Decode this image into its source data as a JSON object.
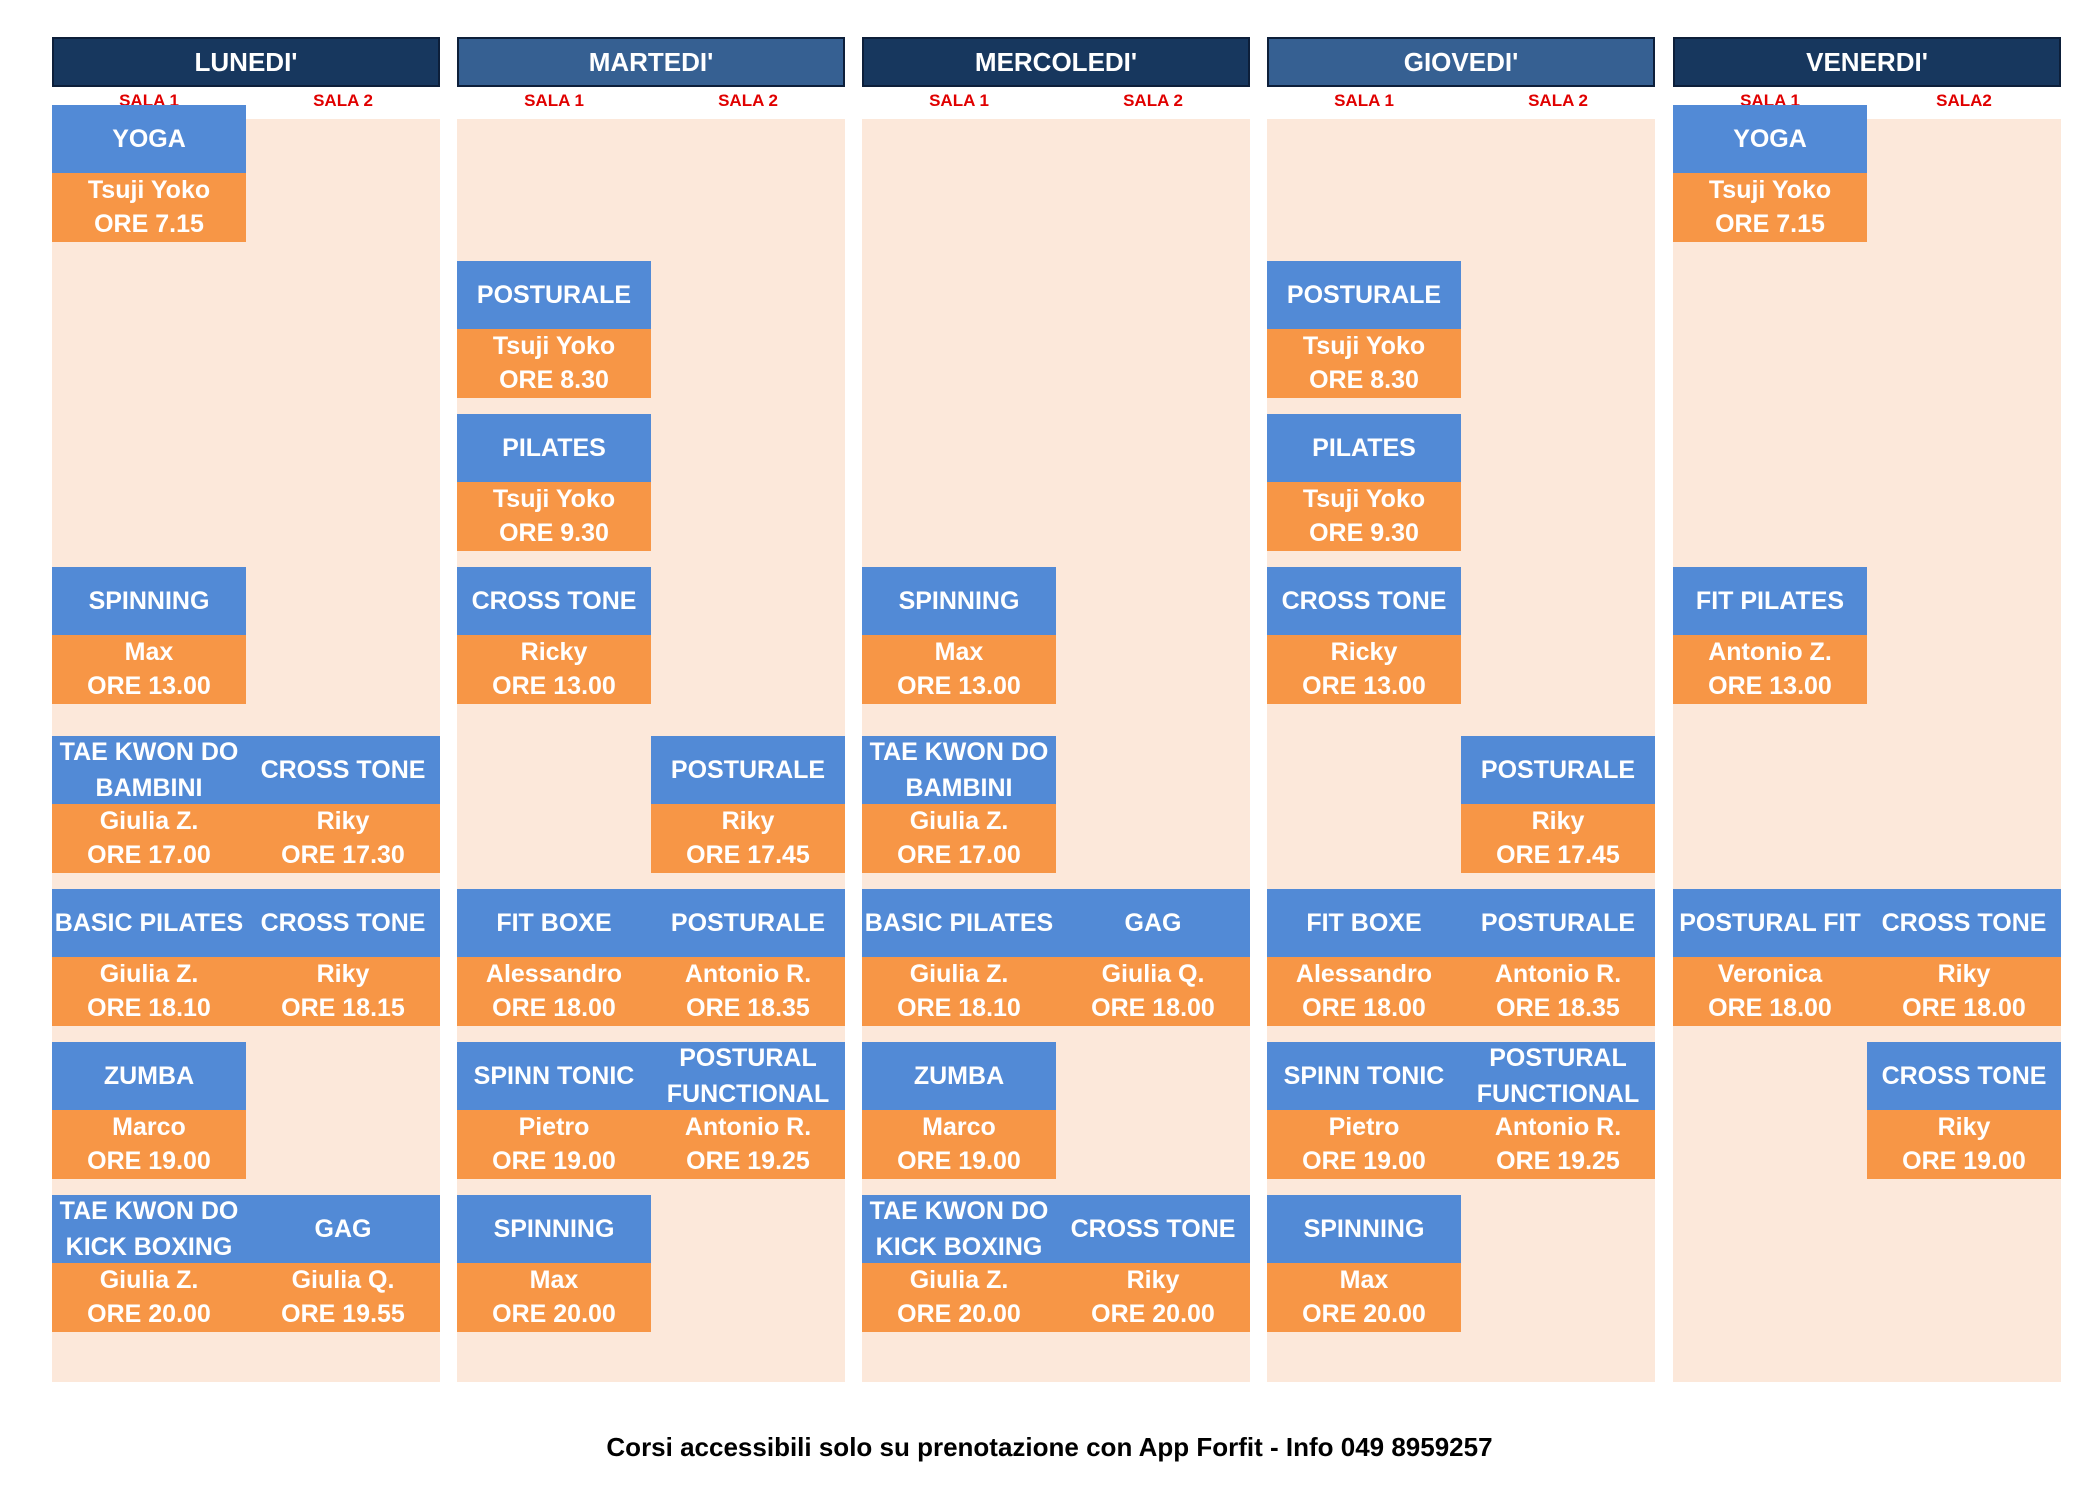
{
  "days": [
    {
      "name": "LUNEDI'",
      "style": "dark",
      "rooms": [
        "SALA 1",
        "SALA 2"
      ],
      "courses": [
        {
          "room": 0,
          "slot": 0,
          "title": "YOGA",
          "instructor": "Tsuji Yoko",
          "time": "ORE 7.15"
        },
        {
          "room": 0,
          "slot": 3,
          "title": "SPINNING",
          "instructor": "Max",
          "time": "ORE 13.00"
        },
        {
          "room": 0,
          "slot": 4,
          "title": "TAE KWON DO\nBAMBINI",
          "instructor": "Giulia Z.",
          "time": "ORE 17.00"
        },
        {
          "room": 1,
          "slot": 4,
          "title": "CROSS TONE",
          "instructor": "Riky",
          "time": "ORE 17.30"
        },
        {
          "room": 0,
          "slot": 5,
          "title": "BASIC PILATES",
          "instructor": "Giulia Z.",
          "time": "ORE 18.10"
        },
        {
          "room": 1,
          "slot": 5,
          "title": "CROSS TONE",
          "instructor": "Riky",
          "time": "ORE 18.15"
        },
        {
          "room": 0,
          "slot": 6,
          "title": "ZUMBA",
          "instructor": "Marco",
          "time": "ORE 19.00"
        },
        {
          "room": 0,
          "slot": 7,
          "title": "TAE KWON DO\nKICK BOXING",
          "instructor": "Giulia Z.",
          "time": "ORE 20.00"
        },
        {
          "room": 1,
          "slot": 7,
          "title": "GAG",
          "instructor": "Giulia Q.",
          "time": "ORE 19.55"
        }
      ]
    },
    {
      "name": "MARTEDI'",
      "style": "light",
      "rooms": [
        "SALA 1",
        "SALA 2"
      ],
      "courses": [
        {
          "room": 0,
          "slot": 1,
          "title": "POSTURALE",
          "instructor": "Tsuji Yoko",
          "time": "ORE 8.30"
        },
        {
          "room": 0,
          "slot": 2,
          "title": "PILATES",
          "instructor": "Tsuji Yoko",
          "time": "ORE 9.30"
        },
        {
          "room": 0,
          "slot": 3,
          "title": "CROSS TONE",
          "instructor": "Ricky",
          "time": "ORE 13.00"
        },
        {
          "room": 1,
          "slot": 4,
          "title": "POSTURALE",
          "instructor": "Riky",
          "time": "ORE 17.45"
        },
        {
          "room": 0,
          "slot": 5,
          "title": "FIT BOXE",
          "instructor": "Alessandro",
          "time": "ORE 18.00"
        },
        {
          "room": 1,
          "slot": 5,
          "title": "POSTURALE",
          "instructor": "Antonio R.",
          "time": "ORE 18.35"
        },
        {
          "room": 0,
          "slot": 6,
          "title": "SPINN TONIC",
          "instructor": "Pietro",
          "time": "ORE 19.00"
        },
        {
          "room": 1,
          "slot": 6,
          "title": "POSTURAL\nFUNCTIONAL",
          "instructor": "Antonio R.",
          "time": "ORE 19.25"
        },
        {
          "room": 0,
          "slot": 7,
          "title": "SPINNING",
          "instructor": "Max",
          "time": "ORE 20.00"
        }
      ]
    },
    {
      "name": "MERCOLEDI'",
      "style": "dark",
      "rooms": [
        "SALA 1",
        "SALA 2"
      ],
      "courses": [
        {
          "room": 0,
          "slot": 3,
          "title": "SPINNING",
          "instructor": "Max",
          "time": "ORE 13.00"
        },
        {
          "room": 0,
          "slot": 4,
          "title": "TAE KWON DO\nBAMBINI",
          "instructor": "Giulia Z.",
          "time": "ORE 17.00"
        },
        {
          "room": 0,
          "slot": 5,
          "title": "BASIC PILATES",
          "instructor": "Giulia Z.",
          "time": "ORE 18.10"
        },
        {
          "room": 1,
          "slot": 5,
          "title": "GAG",
          "instructor": "Giulia Q.",
          "time": "ORE 18.00"
        },
        {
          "room": 0,
          "slot": 6,
          "title": "ZUMBA",
          "instructor": "Marco",
          "time": "ORE 19.00"
        },
        {
          "room": 0,
          "slot": 7,
          "title": "TAE KWON DO\nKICK BOXING",
          "instructor": "Giulia Z.",
          "time": "ORE 20.00"
        },
        {
          "room": 1,
          "slot": 7,
          "title": "CROSS TONE",
          "instructor": "Riky",
          "time": "ORE 20.00"
        }
      ]
    },
    {
      "name": "GIOVEDI'",
      "style": "light",
      "rooms": [
        "SALA 1",
        "SALA 2"
      ],
      "courses": [
        {
          "room": 0,
          "slot": 1,
          "title": "POSTURALE",
          "instructor": "Tsuji Yoko",
          "time": "ORE 8.30"
        },
        {
          "room": 0,
          "slot": 2,
          "title": "PILATES",
          "instructor": "Tsuji Yoko",
          "time": "ORE 9.30"
        },
        {
          "room": 0,
          "slot": 3,
          "title": "CROSS TONE",
          "instructor": "Ricky",
          "time": "ORE 13.00"
        },
        {
          "room": 1,
          "slot": 4,
          "title": "POSTURALE",
          "instructor": "Riky",
          "time": "ORE 17.45"
        },
        {
          "room": 0,
          "slot": 5,
          "title": "FIT BOXE",
          "instructor": "Alessandro",
          "time": "ORE 18.00"
        },
        {
          "room": 1,
          "slot": 5,
          "title": "POSTURALE",
          "instructor": "Antonio R.",
          "time": "ORE 18.35"
        },
        {
          "room": 0,
          "slot": 6,
          "title": "SPINN TONIC",
          "instructor": "Pietro",
          "time": "ORE 19.00"
        },
        {
          "room": 1,
          "slot": 6,
          "title": "POSTURAL\nFUNCTIONAL",
          "instructor": "Antonio R.",
          "time": "ORE 19.25"
        },
        {
          "room": 0,
          "slot": 7,
          "title": "SPINNING",
          "instructor": "Max",
          "time": "ORE 20.00"
        }
      ]
    },
    {
      "name": "VENERDI'",
      "style": "dark",
      "rooms": [
        "SALA 1",
        "SALA2"
      ],
      "courses": [
        {
          "room": 0,
          "slot": 0,
          "title": "YOGA",
          "instructor": "Tsuji Yoko",
          "time": "ORE 7.15"
        },
        {
          "room": 0,
          "slot": 3,
          "title": "FIT PILATES",
          "instructor": "Antonio Z.",
          "time": "ORE 13.00"
        },
        {
          "room": 0,
          "slot": 5,
          "title": "POSTURAL FIT",
          "instructor": "Veronica",
          "time": "ORE 18.00"
        },
        {
          "room": 1,
          "slot": 5,
          "title": "CROSS TONE",
          "instructor": "Riky",
          "time": "ORE 18.00"
        },
        {
          "room": 1,
          "slot": 6,
          "title": "CROSS TONE",
          "instructor": "Riky",
          "time": "ORE 19.00"
        }
      ]
    }
  ],
  "footer": "Corsi accessibili solo su prenotazione con App Forfit - Info 049 8959257",
  "colors": {
    "header_dark": "#17375e",
    "header_light": "#366092",
    "room_label": "#e00000",
    "course_title_bg": "#528ad6",
    "course_info_bg": "#f79646",
    "column_bg": "#fce8da"
  }
}
